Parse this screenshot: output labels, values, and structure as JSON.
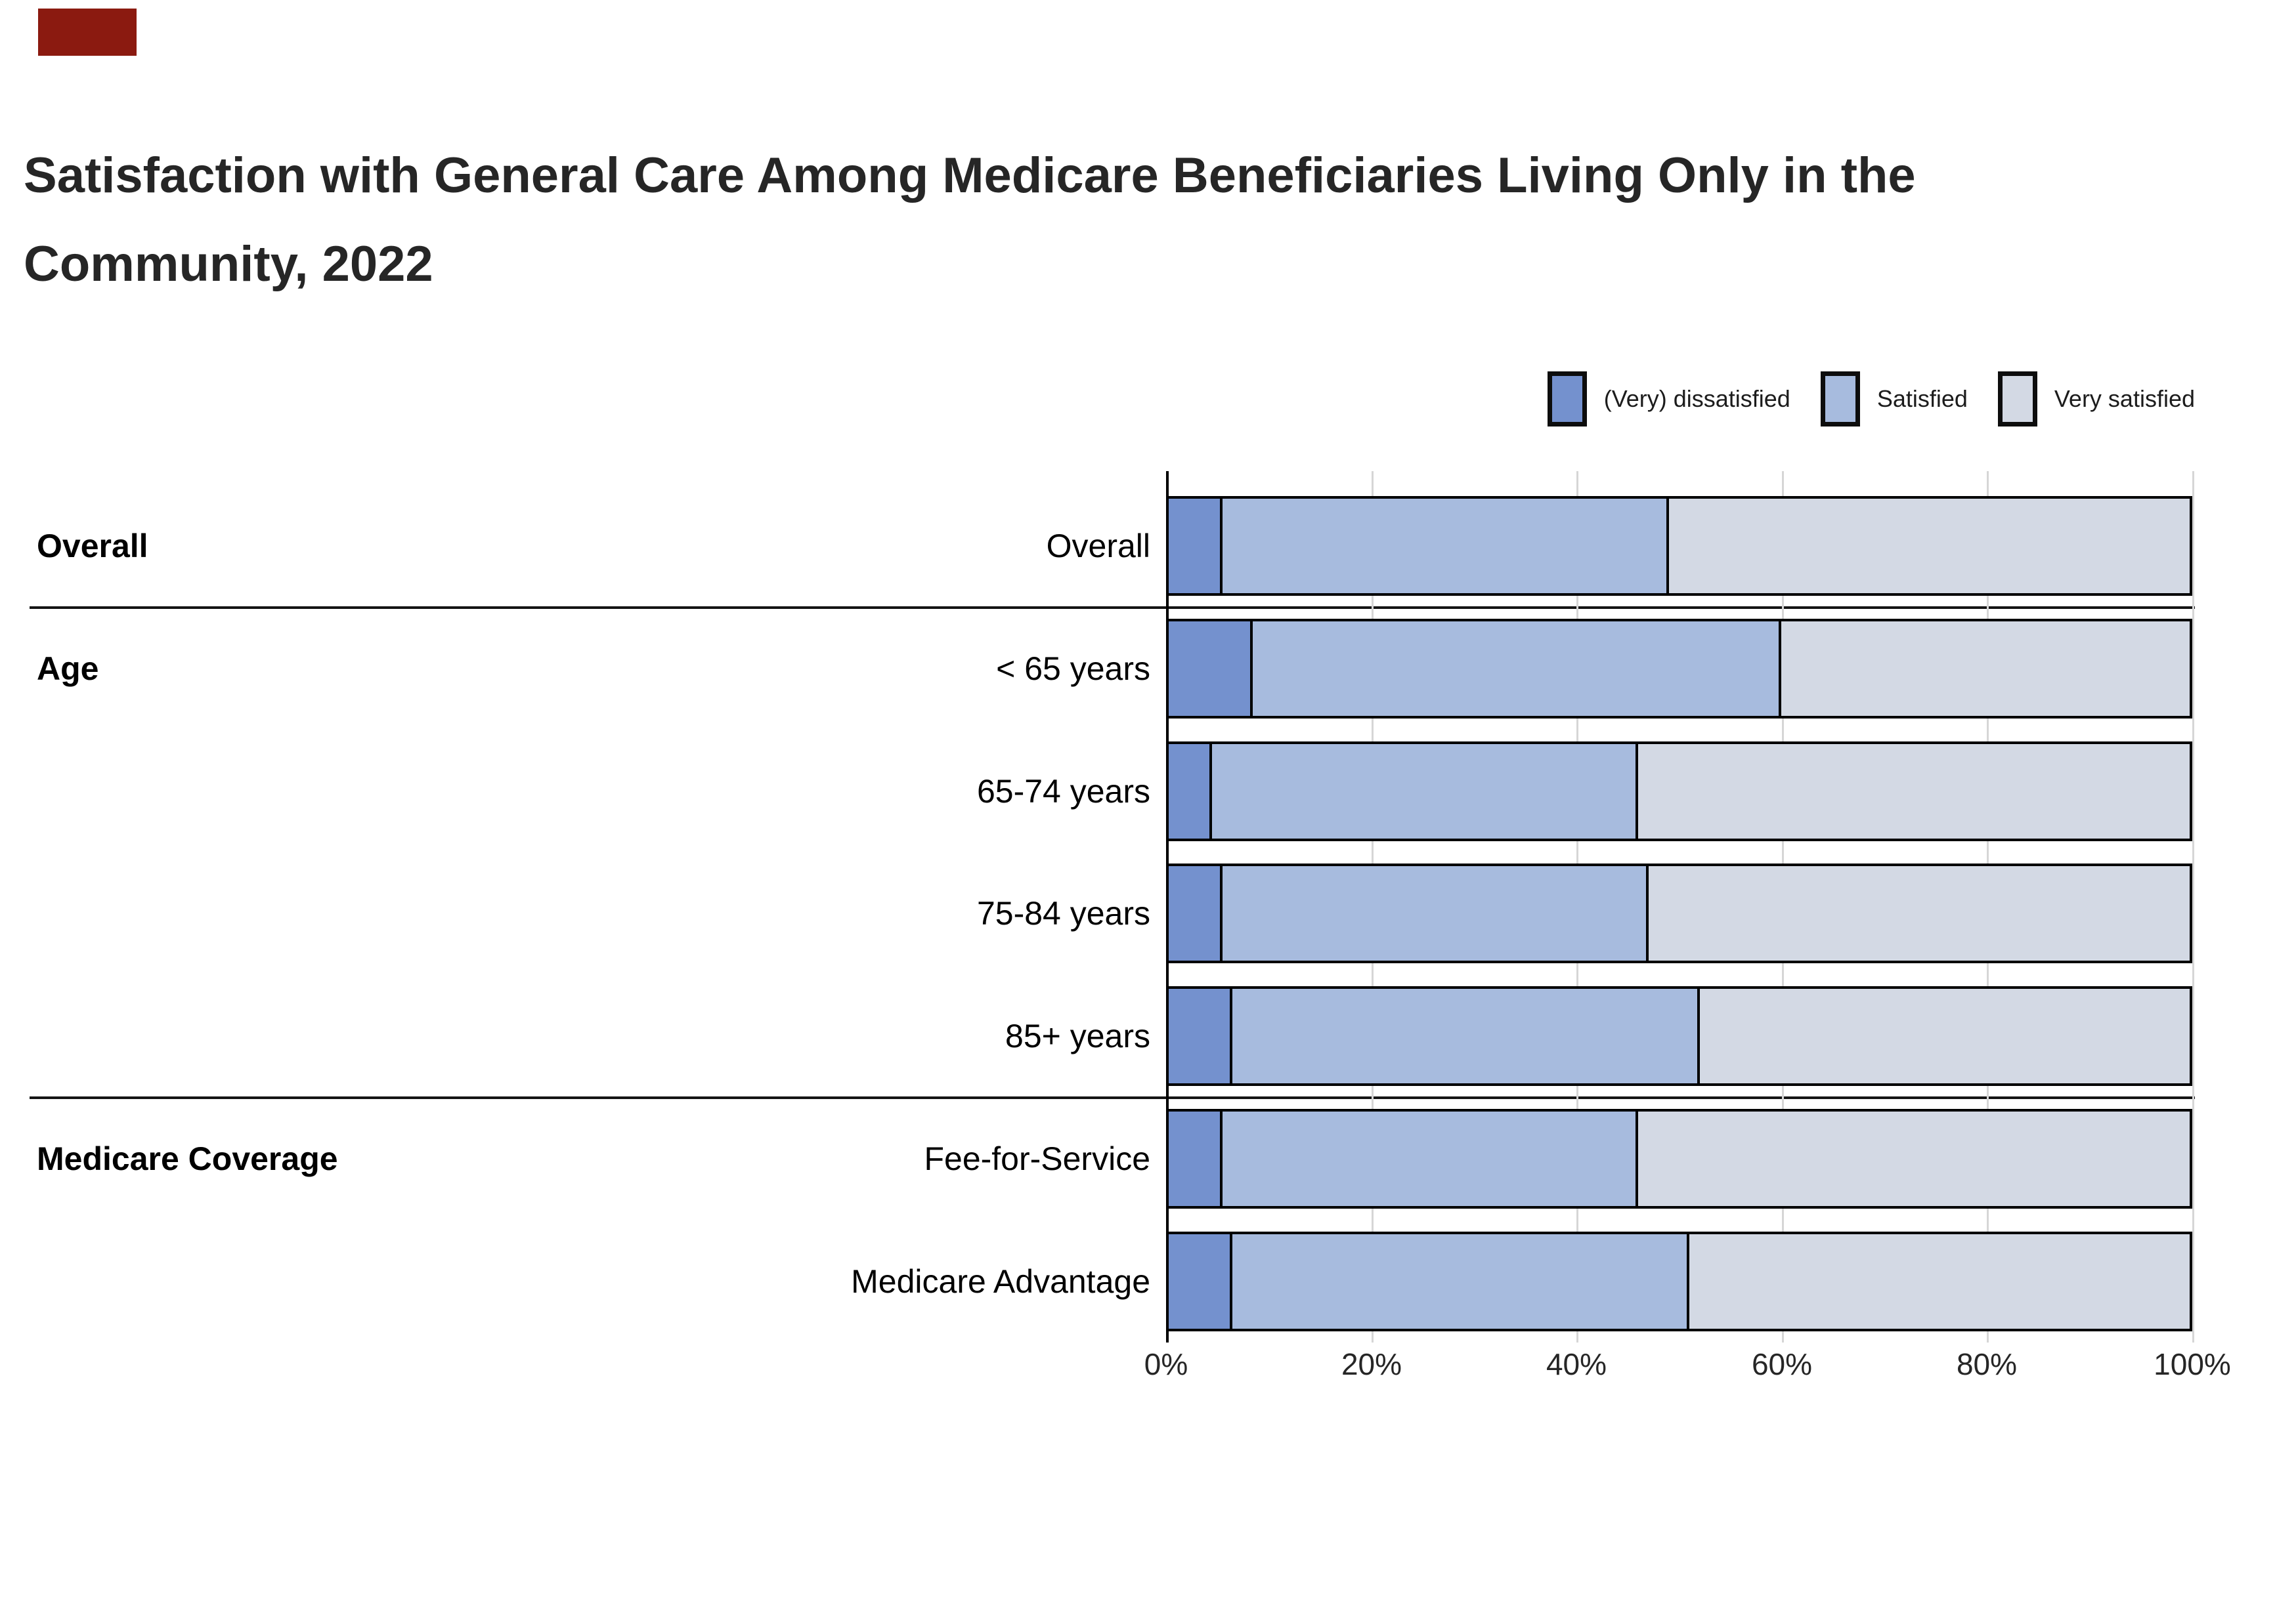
{
  "title": "Satisfaction with General Care Among Medicare Beneficiaries Living Only in the Community, 2022",
  "marker": {
    "color": "#8b1a10"
  },
  "legend": [
    {
      "label": "(Very) dissatisfied",
      "color": "#7491ce"
    },
    {
      "label": "Satisfied",
      "color": "#a7bbde"
    },
    {
      "label": "Very satisfied",
      "color": "#d3d9e4"
    }
  ],
  "chart_data": {
    "type": "bar",
    "orientation": "horizontal",
    "stacked": true,
    "title": "Satisfaction with General Care Among Medicare Beneficiaries Living Only in the Community, 2022",
    "categories": [
      "Overall",
      "< 65 years",
      "65-74 years",
      "75-84 years",
      "85+ years",
      "Fee-for-Service",
      "Medicare Advantage"
    ],
    "series": [
      {
        "name": "(Very) dissatisfied",
        "color": "#7491ce",
        "values": [
          5,
          8,
          4,
          5,
          6,
          5,
          6
        ]
      },
      {
        "name": "Satisfied",
        "color": "#a7bbde",
        "values": [
          44,
          52,
          42,
          42,
          46,
          41,
          45
        ]
      },
      {
        "name": "Very satisfied",
        "color": "#d3d9e4",
        "values": [
          51,
          40,
          54,
          53,
          48,
          54,
          49
        ]
      }
    ],
    "sections": [
      {
        "label": "Overall",
        "first_row": 0,
        "row_count": 1
      },
      {
        "label": "Age",
        "first_row": 1,
        "row_count": 4
      },
      {
        "label": "Medicare Coverage",
        "first_row": 5,
        "row_count": 2
      }
    ],
    "x_ticks": [
      "0%",
      "20%",
      "40%",
      "60%",
      "80%",
      "100%"
    ],
    "xlim": [
      0,
      100
    ],
    "grid": true,
    "legend_position": "top-right",
    "bar_outline_color": "#000000",
    "gridline_color": "#d6d6d6",
    "axis_line_color": "#000000"
  }
}
